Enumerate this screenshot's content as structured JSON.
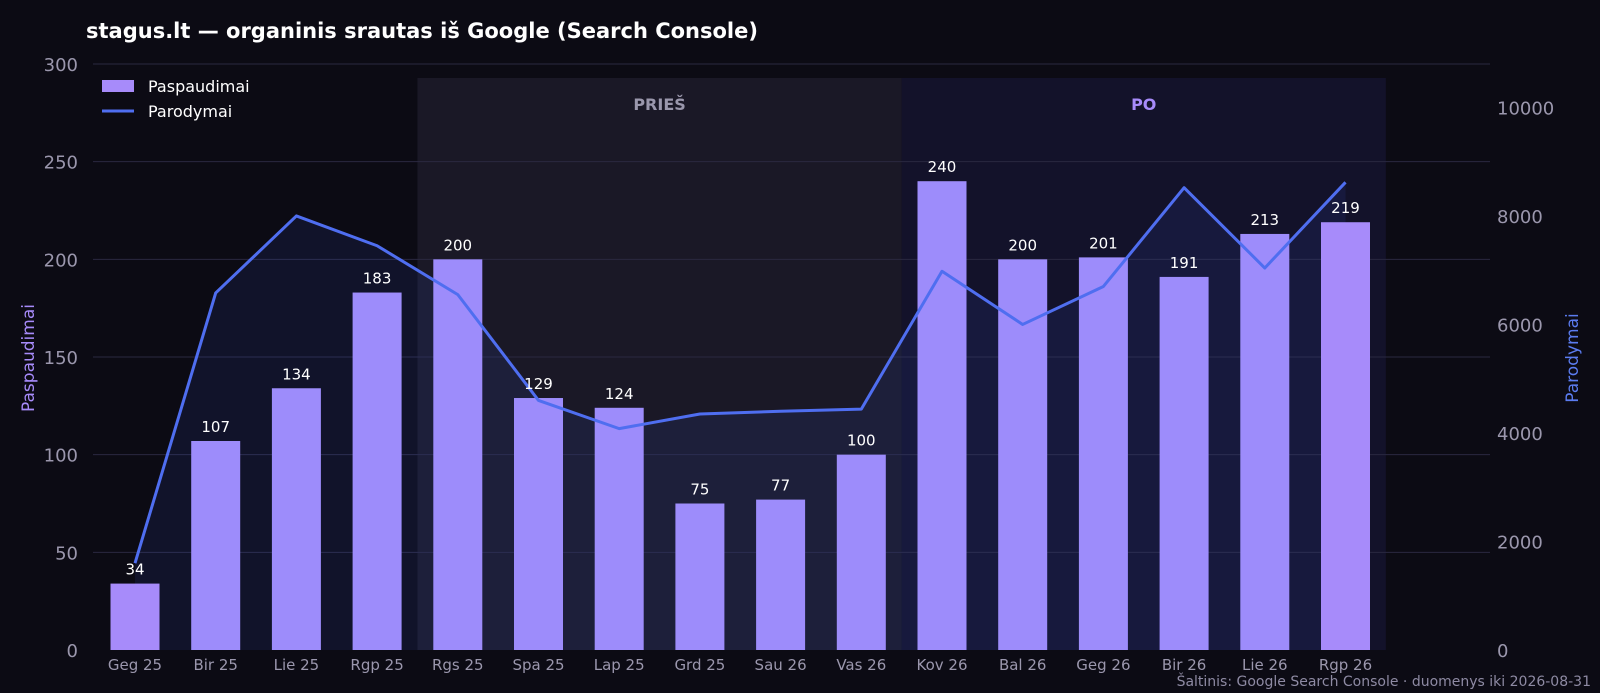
{
  "chart_data": {
    "type": "bar",
    "title": "stagus.lt — organinis srautas iš Google (Search Console)",
    "categories": [
      "Geg 25",
      "Bir 25",
      "Lie 25",
      "Rgp 25",
      "Rgs 25",
      "Spa 25",
      "Lap 25",
      "Grd 25",
      "Sau 26",
      "Vas 26",
      "Kov 26",
      "Bal 26",
      "Geg 26",
      "Bir 26",
      "Lie 26",
      "Rgp 26"
    ],
    "series": [
      {
        "name": "Paspaudimai",
        "type": "bar",
        "axis": "left",
        "color": "#a78bfa",
        "values": [
          34,
          107,
          134,
          183,
          200,
          129,
          124,
          75,
          77,
          100,
          240,
          200,
          201,
          191,
          213,
          219
        ]
      },
      {
        "name": "Parodymai",
        "type": "line",
        "axis": "right",
        "color": "#4f6ef0",
        "values": [
          1600,
          6580,
          8000,
          7450,
          6550,
          4600,
          4080,
          4350,
          4400,
          4440,
          6980,
          6000,
          6700,
          8520,
          7040,
          8620
        ]
      }
    ],
    "ylabel": "Paspaudimai",
    "ylabel_right": "Parodymai",
    "ylim": [
      0,
      300
    ],
    "ylim_right": [
      0,
      10800
    ],
    "yticks": [
      "0",
      "50",
      "100",
      "150",
      "200",
      "250",
      "300"
    ],
    "yticks_right": [
      "0",
      "2000",
      "4000",
      "6000",
      "8000",
      "10000"
    ],
    "bar_labels": [
      "34",
      "107",
      "134",
      "183",
      "200",
      "129",
      "124",
      "75",
      "77",
      "100",
      "240",
      "200",
      "201",
      "191",
      "213",
      "219"
    ],
    "periods": [
      {
        "label": "PRIEŠ",
        "from": "Rgs 25",
        "to": "Vas 26"
      },
      {
        "label": "PO",
        "from": "Kov 26",
        "to": "Rgp 26"
      }
    ],
    "legend_position": "top-left",
    "grid": true,
    "source": "Šaltinis: Google Search Console · duomenys iki 2026-08-31"
  }
}
